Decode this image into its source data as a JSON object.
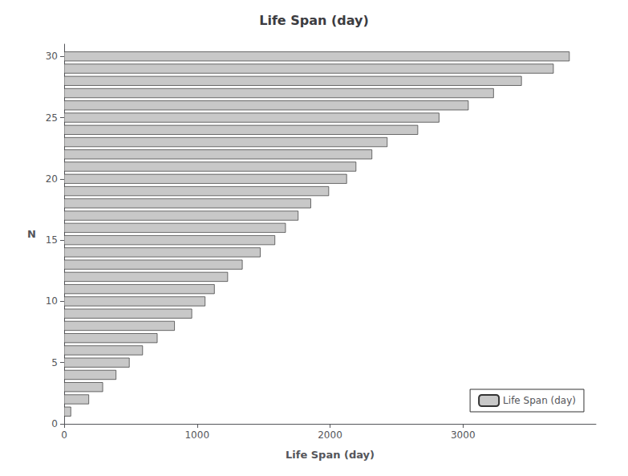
{
  "chart_data": {
    "type": "bar",
    "orientation": "horizontal",
    "title": "Life Span (day)",
    "xlabel": "Life Span (day)",
    "ylabel": "N",
    "x": [
      1,
      2,
      3,
      4,
      5,
      6,
      7,
      8,
      9,
      10,
      11,
      12,
      13,
      14,
      15,
      16,
      17,
      18,
      19,
      20,
      21,
      22,
      23,
      24,
      25,
      26,
      27,
      28,
      29,
      30
    ],
    "series": [
      {
        "name": "Life Span (day)",
        "color": "#c8c8c8",
        "values": [
          50,
          185,
          290,
          390,
          490,
          590,
          700,
          830,
          960,
          1060,
          1130,
          1230,
          1340,
          1475,
          1585,
          1665,
          1760,
          1855,
          1990,
          2125,
          2195,
          2315,
          2430,
          2660,
          2820,
          3040,
          3230,
          3440,
          3680,
          3800
        ]
      }
    ],
    "xlim": [
      0,
      4000
    ],
    "xticks": [
      0,
      1000,
      2000,
      3000
    ],
    "ylim": [
      0,
      31
    ],
    "yticks": [
      0,
      5,
      10,
      15,
      20,
      25,
      30
    ],
    "grid": false,
    "legend": "lower right"
  }
}
